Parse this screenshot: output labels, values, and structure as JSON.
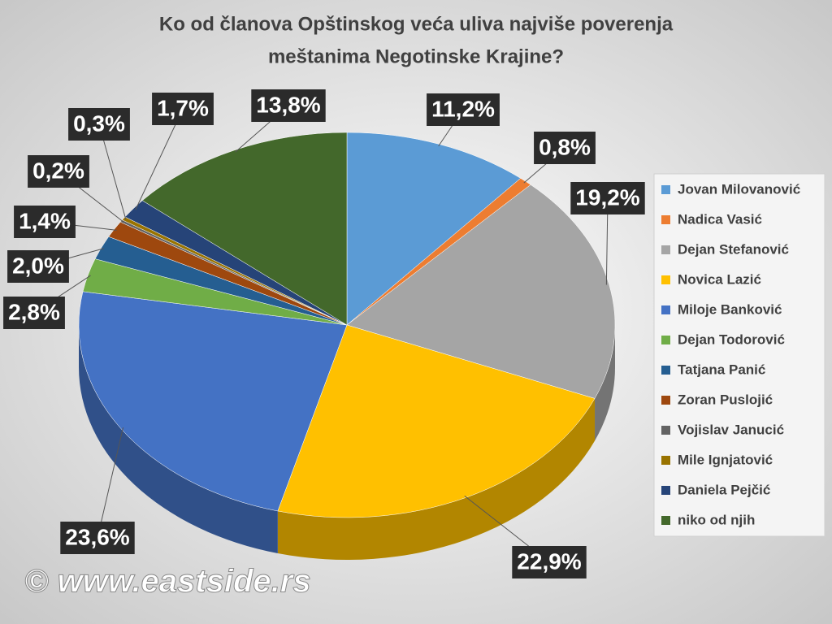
{
  "chart_data": {
    "type": "pie",
    "title": [
      "Ko od članova Opštinskog veća uliva najviše poverenja",
      "meštanima Negotinske Krajine?"
    ],
    "categories": [
      "Jovan Milovanović",
      "Nadica Vasić",
      "Dejan Stefanović",
      "Novica Lazić",
      "Miloje Banković",
      "Dejan Todorović",
      "Tatjana Panić",
      "Zoran Puslojić",
      "Vojislav Janucić",
      "Mile Ignjatović",
      "Daniela Pejčić",
      "niko od njih"
    ],
    "values": [
      11.2,
      0.8,
      19.2,
      22.9,
      23.6,
      2.8,
      2.0,
      1.4,
      0.2,
      0.3,
      1.7,
      13.8
    ],
    "value_labels": [
      "11,2%",
      "0,8%",
      "19,2%",
      "22,9%",
      "23,6%",
      "2,8%",
      "2,0%",
      "1,4%",
      "0,2%",
      "0,3%",
      "1,7%",
      "13,8%"
    ],
    "colors": [
      "#5b9bd5",
      "#ed7d31",
      "#a5a5a5",
      "#ffc000",
      "#4472c4",
      "#70ad47",
      "#255e91",
      "#9e480e",
      "#636363",
      "#997300",
      "#264478",
      "#43682b"
    ],
    "legend": "right",
    "watermark": "© www.eastside.rs"
  }
}
